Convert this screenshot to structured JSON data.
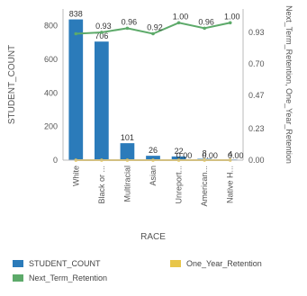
{
  "chart_data": {
    "type": "bar",
    "categories": [
      "White",
      "Black or ...",
      "Multiracial",
      "Asian",
      "Unreport...",
      "American...",
      "Native H..."
    ],
    "series": [
      {
        "name": "STUDENT_COUNT",
        "type": "bar",
        "axis": "left",
        "values": [
          838,
          706,
          101,
          26,
          22,
          8,
          4
        ],
        "color": "#2b7bba"
      },
      {
        "name": "Next_Term_Retention",
        "type": "line",
        "axis": "right",
        "values": [
          0.92,
          0.93,
          0.96,
          0.92,
          1.0,
          0.96,
          1.0
        ],
        "color": "#5daa6a"
      },
      {
        "name": "One_Year_Retention",
        "type": "line",
        "axis": "right",
        "values": [
          0.0,
          0.0,
          0.0,
          0.0,
          0.0,
          0.0,
          0.0
        ],
        "color": "#e8c64a"
      }
    ],
    "bar_labels": [
      "838",
      "706",
      "101",
      "26",
      "22",
      "8",
      "4"
    ],
    "line_labels": [
      "",
      "0.93",
      "0.96",
      "0.92",
      "1.00",
      "0.96",
      "1.00"
    ],
    "zero_labels": [
      "0.00",
      "0.00",
      "0.00",
      "0.00",
      "0.00",
      "0.00",
      "0.00"
    ],
    "xlabel": "RACE",
    "ylabel": "STUDENT_COUNT",
    "ylabel_right": "Next_Term_Retention, One_Year_Retention",
    "ylim": [
      0,
      900
    ],
    "y_ticks": [
      "0",
      "200",
      "400",
      "600",
      "800"
    ],
    "y2lim": [
      0,
      1.1
    ],
    "y2_ticks": [
      "0.00",
      "0.23",
      "0.47",
      "0.70",
      "0.93"
    ],
    "grid": false,
    "legend_position": "bottom"
  },
  "legend": {
    "items": [
      {
        "label": "STUDENT_COUNT",
        "color": "#2b7bba"
      },
      {
        "label": "One_Year_Retention",
        "color": "#e8c64a"
      },
      {
        "label": "Next_Term_Retention",
        "color": "#5daa6a"
      }
    ]
  }
}
